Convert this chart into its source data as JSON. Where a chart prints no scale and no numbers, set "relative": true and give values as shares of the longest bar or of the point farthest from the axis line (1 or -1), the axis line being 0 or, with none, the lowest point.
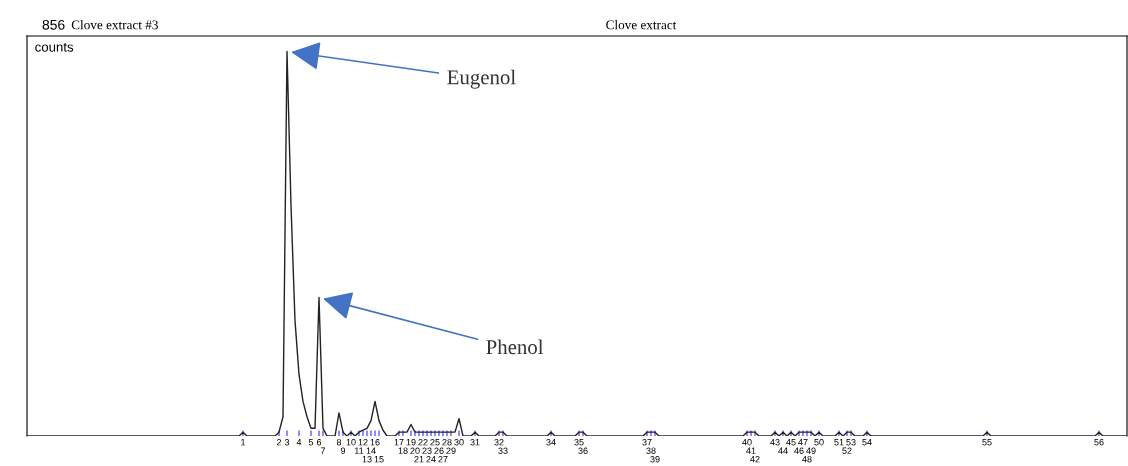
{
  "chart_data": {
    "type": "line",
    "title": "Clove extract",
    "relative": true,
    "color": "#222222",
    "annotations": [
      "856",
      "Clove extract #3",
      "counts",
      {
        "text": "Eugenol",
        "x": "3",
        "y": 1
      },
      {
        "text": "Phenol",
        "x": "6",
        "y": 0.36
      }
    ],
    "categories": [
      null,
      null,
      null,
      null,
      null,
      null,
      null,
      null,
      null,
      null,
      null,
      null,
      null,
      null,
      null,
      null,
      null,
      null,
      null,
      null,
      null,
      null,
      null,
      null,
      null,
      null,
      null,
      null,
      null,
      null,
      null,
      null,
      null,
      null,
      null,
      null,
      null,
      null,
      null,
      null,
      null,
      null,
      null,
      null,
      null,
      null,
      null,
      null,
      null,
      null,
      null,
      null,
      null,
      null,
      "1",
      null,
      null,
      null,
      null,
      null,
      null,
      null,
      null,
      "2",
      null,
      "3",
      null,
      null,
      "4",
      null,
      null,
      "5",
      null,
      "6",
      "7",
      null,
      null,
      null,
      "8",
      "9",
      null,
      "10",
      null,
      "11",
      "12",
      "13",
      "14",
      "16",
      "15",
      null,
      null,
      null,
      null,
      "17",
      "18",
      null,
      "19",
      "20",
      "21",
      "22",
      "23",
      "24",
      "25",
      "26",
      "27",
      "28",
      "29",
      null,
      "30",
      null,
      null,
      null,
      "31",
      null,
      null,
      null,
      null,
      null,
      "32",
      "33",
      null,
      null,
      null,
      null,
      null,
      null,
      null,
      null,
      null,
      null,
      null,
      "34",
      null,
      null,
      null,
      null,
      null,
      null,
      "35",
      "36",
      null,
      null,
      null,
      null,
      null,
      null,
      null,
      null,
      null,
      null,
      null,
      null,
      null,
      null,
      null,
      "37",
      "38",
      "39",
      null,
      null,
      null,
      null,
      null,
      null,
      null,
      null,
      null,
      null,
      null,
      null,
      null,
      null,
      null,
      null,
      null,
      null,
      null,
      null,
      null,
      null,
      "40",
      "41",
      "42",
      null,
      null,
      null,
      null,
      "43",
      null,
      "44",
      null,
      "45",
      null,
      "46",
      "47",
      "48",
      "49",
      null,
      "50",
      null,
      null,
      null,
      null,
      "51",
      null,
      "52",
      "53",
      null,
      null,
      null,
      "54",
      null,
      null,
      null,
      null,
      null,
      null,
      null,
      null,
      null,
      null,
      null,
      null,
      null,
      null,
      null,
      null,
      null,
      null,
      null,
      null,
      null,
      null,
      null,
      null,
      null,
      null,
      null,
      null,
      null,
      "55",
      null,
      null,
      null,
      null,
      null,
      null,
      null,
      null,
      null,
      null,
      null,
      null,
      null,
      null,
      null,
      null,
      null,
      null,
      null,
      null,
      null,
      null,
      null,
      null,
      null,
      null,
      null,
      "56",
      null,
      null,
      null,
      null,
      null,
      null,
      null
    ],
    "values": [
      0,
      0,
      0,
      0,
      0,
      0,
      0,
      0,
      0,
      0,
      0,
      0,
      0,
      0,
      0,
      0,
      0,
      0,
      0,
      0,
      0,
      0,
      0,
      0,
      0,
      0,
      0,
      0,
      0,
      0,
      0,
      0,
      0,
      0,
      0,
      0,
      0,
      0,
      0,
      0,
      0,
      0,
      0,
      0,
      0,
      0,
      0,
      0,
      0,
      0,
      0,
      0,
      0,
      0,
      0.01,
      0,
      0,
      0,
      0,
      0,
      0,
      0,
      0,
      0.01,
      0.05,
      1,
      0.6,
      0.3,
      0.16,
      0.09,
      0.05,
      0.02,
      0.02,
      0.36,
      0.02,
      0,
      0,
      0,
      0.06,
      0.01,
      0,
      0.01,
      0,
      0.01,
      0.015,
      0.02,
      0.04,
      0.09,
      0.04,
      0.015,
      0,
      0,
      0,
      0.01,
      0.01,
      0.01,
      0.03,
      0.01,
      0.01,
      0.01,
      0.01,
      0.01,
      0.01,
      0.01,
      0.01,
      0.01,
      0.01,
      0.01,
      0.045,
      0,
      0,
      0,
      0.01,
      0,
      0,
      0,
      0,
      0,
      0.01,
      0.01,
      0,
      0,
      0,
      0,
      0,
      0,
      0,
      0,
      0,
      0,
      0,
      0.01,
      0,
      0,
      0,
      0,
      0,
      0,
      0.01,
      0.01,
      0,
      0,
      0,
      0,
      0,
      0,
      0,
      0,
      0,
      0,
      0,
      0,
      0,
      0,
      0,
      0.01,
      0.01,
      0.01,
      0,
      0,
      0,
      0,
      0,
      0,
      0,
      0,
      0,
      0,
      0,
      0,
      0,
      0,
      0,
      0,
      0,
      0,
      0,
      0,
      0,
      0,
      0.01,
      0.01,
      0.01,
      0,
      0,
      0,
      0,
      0.01,
      0,
      0.01,
      0,
      0.01,
      0,
      0.01,
      0.01,
      0.01,
      0.01,
      0,
      0.01,
      0,
      0,
      0,
      0,
      0.01,
      0,
      0.01,
      0.01,
      0,
      0,
      0,
      0.01,
      0,
      0,
      0,
      0,
      0,
      0,
      0,
      0,
      0,
      0,
      0,
      0,
      0,
      0,
      0,
      0,
      0,
      0,
      0,
      0,
      0,
      0,
      0,
      0,
      0,
      0,
      0,
      0,
      0,
      0.01,
      0,
      0,
      0,
      0,
      0,
      0,
      0,
      0,
      0,
      0,
      0,
      0,
      0,
      0,
      0,
      0,
      0,
      0,
      0,
      0,
      0,
      0,
      0,
      0,
      0,
      0,
      0,
      0.01,
      0,
      0,
      0,
      0,
      0,
      0,
      0
    ]
  }
}
